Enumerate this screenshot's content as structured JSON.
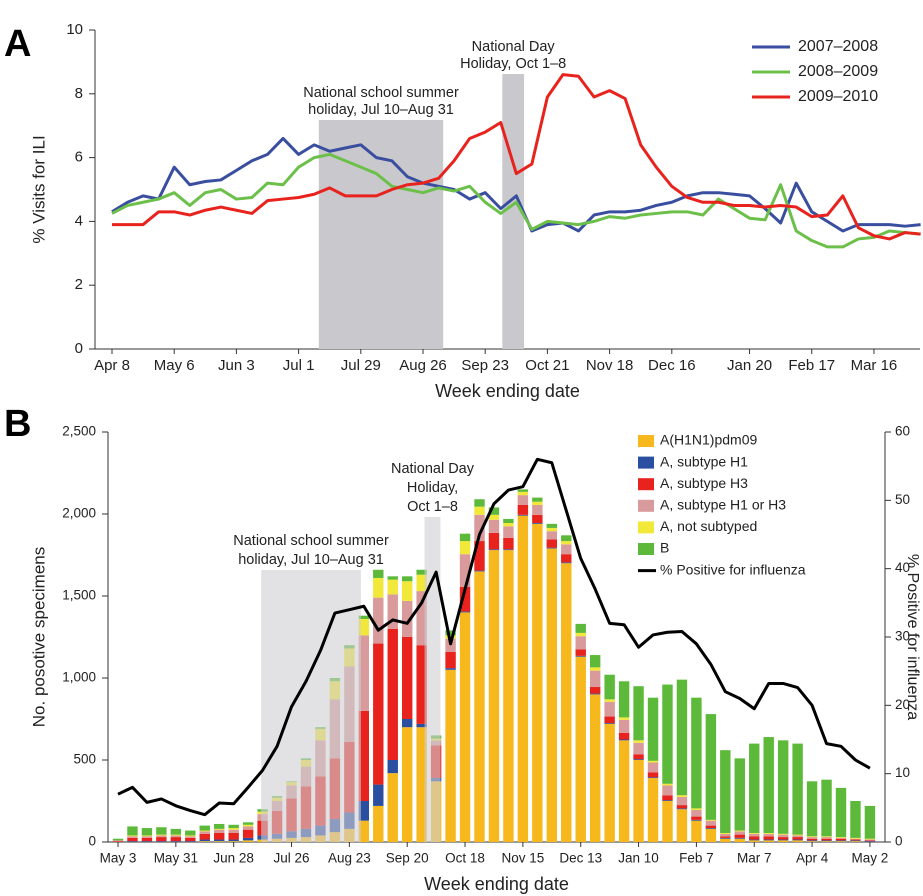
{
  "chart_data": [
    {
      "panel": "A",
      "type": "line",
      "x_label": "Week ending date",
      "y_label": "% Visits for ILI",
      "categories": [
        "Apr 8",
        null,
        null,
        null,
        "May 6",
        null,
        null,
        null,
        "Jun 3",
        null,
        null,
        null,
        "Jul 1",
        null,
        null,
        null,
        "Jul 29",
        null,
        null,
        null,
        "Aug 26",
        null,
        null,
        null,
        "Sep 23",
        null,
        null,
        null,
        "Oct 21",
        null,
        null,
        null,
        "Nov 18",
        null,
        null,
        null,
        "Dec 16",
        null,
        null,
        null,
        null,
        "Jan 20",
        null,
        null,
        null,
        "Feb 17",
        null,
        null,
        null,
        "Mar 16",
        null,
        null,
        null
      ],
      "series": [
        {
          "name": "2007–2008",
          "color": "#3a4ea0",
          "values": [
            4.3,
            4.6,
            4.8,
            4.7,
            5.7,
            5.15,
            5.25,
            5.3,
            5.6,
            5.9,
            6.1,
            6.6,
            6.1,
            6.4,
            6.2,
            6.3,
            6.4,
            6,
            5.9,
            5.4,
            5.2,
            5.1,
            5,
            4.7,
            4.9,
            4.4,
            4.8,
            3.7,
            3.9,
            3.95,
            3.7,
            4.2,
            4.3,
            4.3,
            4.35,
            4.5,
            4.6,
            4.8,
            4.9,
            4.9,
            4.85,
            4.8,
            4.4,
            3.95,
            5.2,
            4.3,
            4,
            3.7,
            3.9,
            3.9,
            3.9,
            3.85,
            3.9
          ]
        },
        {
          "name": "2008–2009",
          "color": "#6cc04a",
          "values": [
            4.25,
            4.5,
            4.6,
            4.7,
            4.9,
            4.5,
            4.9,
            5,
            4.7,
            4.75,
            5.2,
            5.15,
            5.7,
            6,
            6.1,
            5.9,
            5.7,
            5.5,
            5.1,
            5,
            4.9,
            5.05,
            4.95,
            5.1,
            4.6,
            4.25,
            4.6,
            3.75,
            4,
            3.95,
            3.9,
            4,
            4.15,
            4.1,
            4.2,
            4.25,
            4.3,
            4.3,
            4.2,
            4.7,
            4.4,
            4.1,
            4.05,
            5.15,
            3.7,
            3.4,
            3.2,
            3.2,
            3.45,
            3.5,
            3.7,
            3.65,
            3.6
          ]
        },
        {
          "name": "2009–2010",
          "color": "#e8231e",
          "values": [
            3.9,
            3.9,
            3.9,
            4.3,
            4.3,
            4.2,
            4.35,
            4.45,
            4.35,
            4.25,
            4.65,
            4.7,
            4.75,
            4.85,
            5.05,
            4.8,
            4.8,
            4.8,
            5,
            5.15,
            5.2,
            5.35,
            5.9,
            6.6,
            6.8,
            7.1,
            5.5,
            5.8,
            7.9,
            8.6,
            8.55,
            7.9,
            8.1,
            7.85,
            6.4,
            5.7,
            5.1,
            4.75,
            4.6,
            4.6,
            4.5,
            4.5,
            4.45,
            4.5,
            4.45,
            4.15,
            4.2,
            4.8,
            3.8,
            3.55,
            3.45,
            3.65,
            3.6
          ]
        }
      ],
      "ylim": [
        0,
        10
      ],
      "yticks": [
        0,
        2,
        4,
        6,
        8,
        10
      ],
      "legend": "top-right",
      "annotations": [
        {
          "text": [
            "National school summer",
            "holiday, Jul 10–Aug 31"
          ],
          "start": 13.3,
          "end": 21.3
        },
        {
          "text": [
            "National Day",
            "Holiday, Oct 1–8"
          ],
          "start": 25.1,
          "end": 26.5
        }
      ]
    },
    {
      "panel": "B",
      "type": "bar",
      "stacked": true,
      "x_label": "Week ending date",
      "y_label": "No. posotive specimens",
      "y2_label": "% Positive for influenza",
      "categories": [
        "May 3",
        null,
        null,
        null,
        "May 31",
        null,
        null,
        null,
        "Jun 28",
        null,
        null,
        null,
        "Jul 26",
        null,
        null,
        null,
        "Aug 23",
        null,
        null,
        null,
        "Sep 20",
        null,
        null,
        null,
        "Oct 18",
        null,
        null,
        null,
        "Nov 15",
        null,
        null,
        null,
        "Dec 13",
        null,
        null,
        null,
        "Jan 10",
        null,
        null,
        null,
        "Feb 7",
        null,
        null,
        null,
        "Mar 7",
        null,
        null,
        null,
        "Apr 4",
        null,
        null,
        null,
        "May 2"
      ],
      "series": [
        {
          "name": "A(H1N1)pdm09",
          "color": "#f7b81e",
          "values": [
            0,
            0,
            0,
            0,
            0,
            0,
            5,
            5,
            5,
            10,
            15,
            20,
            25,
            30,
            40,
            60,
            80,
            130,
            220,
            420,
            700,
            700,
            370,
            1050,
            1400,
            1650,
            1780,
            1780,
            1990,
            1940,
            1790,
            1700,
            1130,
            900,
            720,
            620,
            500,
            390,
            250,
            200,
            130,
            80,
            20,
            20,
            10,
            10,
            10,
            10,
            5,
            5,
            5,
            5,
            0
          ]
        },
        {
          "name": "A, subtype H1",
          "color": "#2a4fa0",
          "values": [
            0,
            5,
            5,
            5,
            5,
            5,
            10,
            10,
            10,
            15,
            25,
            30,
            40,
            50,
            60,
            80,
            100,
            120,
            130,
            80,
            50,
            20,
            20,
            10,
            5,
            5,
            5,
            5,
            5,
            5,
            5,
            5,
            5,
            5,
            5,
            5,
            5,
            5,
            5,
            5,
            5,
            5,
            5,
            5,
            5,
            5,
            5,
            5,
            5,
            5,
            5,
            5,
            5
          ]
        },
        {
          "name": "A, subtype H3",
          "color": "#e8231e",
          "values": [
            5,
            20,
            20,
            25,
            25,
            20,
            35,
            40,
            40,
            50,
            90,
            140,
            200,
            260,
            300,
            370,
            430,
            550,
            860,
            800,
            500,
            480,
            200,
            100,
            150,
            180,
            100,
            70,
            60,
            50,
            50,
            50,
            40,
            40,
            40,
            40,
            30,
            30,
            30,
            20,
            20,
            15,
            10,
            20,
            20,
            20,
            15,
            15,
            10,
            10,
            10,
            5,
            5
          ]
        },
        {
          "name": "A, subtype H1 or H3",
          "color": "#d89a9a",
          "values": [
            5,
            10,
            10,
            10,
            10,
            10,
            15,
            20,
            20,
            20,
            40,
            60,
            80,
            120,
            220,
            360,
            460,
            460,
            280,
            210,
            220,
            330,
            30,
            80,
            200,
            160,
            80,
            70,
            60,
            60,
            50,
            60,
            80,
            100,
            90,
            80,
            70,
            60,
            60,
            50,
            40,
            30,
            15,
            20,
            15,
            15,
            15,
            10,
            10,
            10,
            5,
            5,
            5
          ]
        },
        {
          "name": "A, not subtyped",
          "color": "#f2e83a",
          "values": [
            0,
            5,
            5,
            5,
            5,
            5,
            5,
            5,
            10,
            10,
            15,
            20,
            20,
            40,
            70,
            110,
            110,
            100,
            120,
            90,
            120,
            100,
            10,
            20,
            80,
            50,
            30,
            20,
            20,
            20,
            20,
            20,
            20,
            20,
            15,
            15,
            15,
            10,
            10,
            10,
            10,
            5,
            5,
            5,
            5,
            5,
            5,
            5,
            5,
            5,
            5,
            5,
            5
          ]
        },
        {
          "name": "B",
          "color": "#5cb93a",
          "values": [
            10,
            55,
            45,
            45,
            35,
            30,
            30,
            30,
            20,
            15,
            15,
            10,
            5,
            10,
            10,
            20,
            20,
            20,
            50,
            20,
            30,
            30,
            20,
            30,
            45,
            45,
            45,
            25,
            15,
            25,
            25,
            35,
            55,
            75,
            150,
            220,
            330,
            385,
            605,
            705,
            675,
            645,
            505,
            440,
            545,
            585,
            570,
            555,
            335,
            345,
            300,
            225,
            200
          ]
        },
        {
          "name": "% Positive for influenza",
          "type": "line",
          "axis": "y2",
          "color": "#000000",
          "values": [
            7,
            8,
            5.8,
            6.3,
            5.3,
            4.6,
            4,
            5.7,
            5.6,
            8,
            10.5,
            14,
            19.8,
            23.5,
            28,
            33.5,
            34,
            34.5,
            31,
            32.5,
            32,
            35,
            39.5,
            29,
            37,
            45,
            49.5,
            51.5,
            52,
            56,
            55.5,
            48.5,
            41.5,
            37,
            32,
            31.8,
            28.5,
            30.3,
            30.7,
            30.8,
            29,
            26,
            22,
            21,
            19.5,
            23.2,
            23.2,
            22.6,
            20,
            14.4,
            14,
            12,
            10.8
          ]
        }
      ],
      "ylim": [
        0,
        2500
      ],
      "yticks": [
        0,
        500,
        {
          "value": 1000,
          "label": "1,000"
        },
        {
          "value": 1500,
          "label": "1,500"
        },
        {
          "value": 2000,
          "label": "2,000"
        },
        {
          "value": 2500,
          "label": "2,500"
        }
      ],
      "y2lim": [
        0,
        60
      ],
      "y2ticks": [
        0,
        10,
        20,
        30,
        40,
        50,
        60
      ],
      "legend": "top-right",
      "annotations": [
        {
          "text": [
            "National school summer",
            "holiday, Jul 10–Aug 31"
          ],
          "start": 9.9,
          "end": 16.8
        },
        {
          "text": [
            "National Day",
            "Holiday,",
            "Oct 1–8"
          ],
          "start": 21.2,
          "end": 22.3
        }
      ]
    }
  ]
}
